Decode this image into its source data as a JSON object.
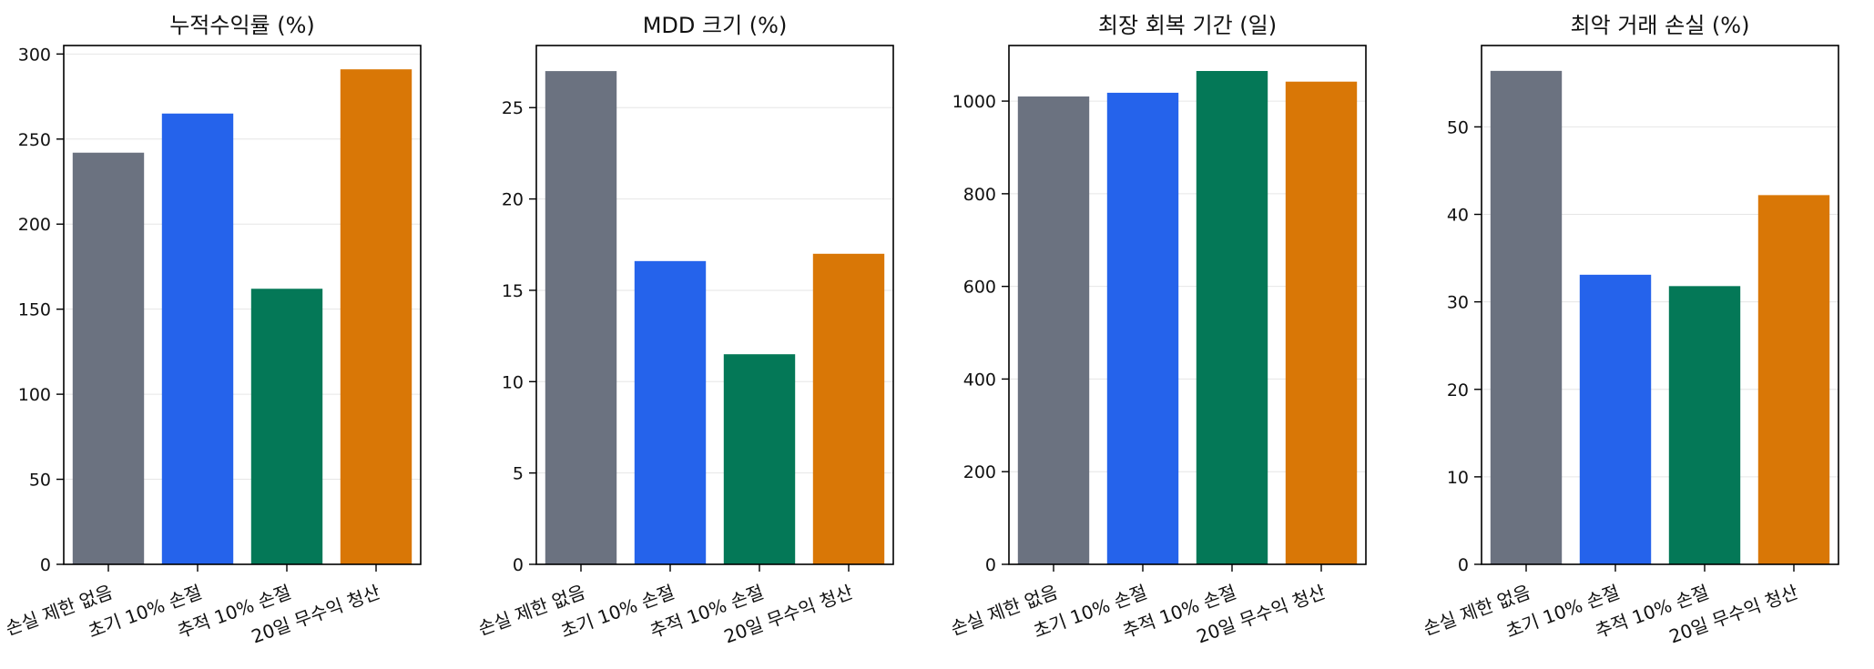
{
  "chart_data": [
    {
      "type": "bar",
      "title": "누적수익률 (%)",
      "categories": [
        "손실 제한 없음",
        "초기 10% 손절",
        "추적 10% 손절",
        "20일 무수익 청산"
      ],
      "values": [
        242,
        265,
        162,
        291
      ],
      "colors": [
        "#6b7280",
        "#2563eb",
        "#047857",
        "#d97706"
      ],
      "ylim": [
        0,
        305
      ],
      "yticks": [
        0,
        50,
        100,
        150,
        200,
        250,
        300
      ],
      "grid": true
    },
    {
      "type": "bar",
      "title": "MDD 크기 (%)",
      "categories": [
        "손실 제한 없음",
        "초기 10% 손절",
        "추적 10% 손절",
        "20일 무수익 청산"
      ],
      "values": [
        27.0,
        16.6,
        11.5,
        17.0
      ],
      "colors": [
        "#6b7280",
        "#2563eb",
        "#047857",
        "#d97706"
      ],
      "ylim": [
        0,
        28.4
      ],
      "yticks": [
        0,
        5,
        10,
        15,
        20,
        25
      ],
      "grid": true
    },
    {
      "type": "bar",
      "title": "최장 회복 기간 (일)",
      "categories": [
        "손실 제한 없음",
        "초기 10% 손절",
        "추적 10% 손절",
        "20일 무수익 청산"
      ],
      "values": [
        1010,
        1018,
        1065,
        1042
      ],
      "colors": [
        "#6b7280",
        "#2563eb",
        "#047857",
        "#d97706"
      ],
      "ylim": [
        0,
        1120
      ],
      "yticks": [
        0,
        200,
        400,
        600,
        800,
        1000
      ],
      "grid": true
    },
    {
      "type": "bar",
      "title": "최악 거래 손실 (%)",
      "categories": [
        "손실 제한 없음",
        "초기 10% 손절",
        "추적 10% 손절",
        "20일 무수익 청산"
      ],
      "values": [
        56.4,
        33.1,
        31.8,
        42.2
      ],
      "colors": [
        "#6b7280",
        "#2563eb",
        "#047857",
        "#d97706"
      ],
      "ylim": [
        0,
        59.3
      ],
      "yticks": [
        0,
        10,
        20,
        30,
        40,
        50
      ],
      "grid": true
    }
  ]
}
